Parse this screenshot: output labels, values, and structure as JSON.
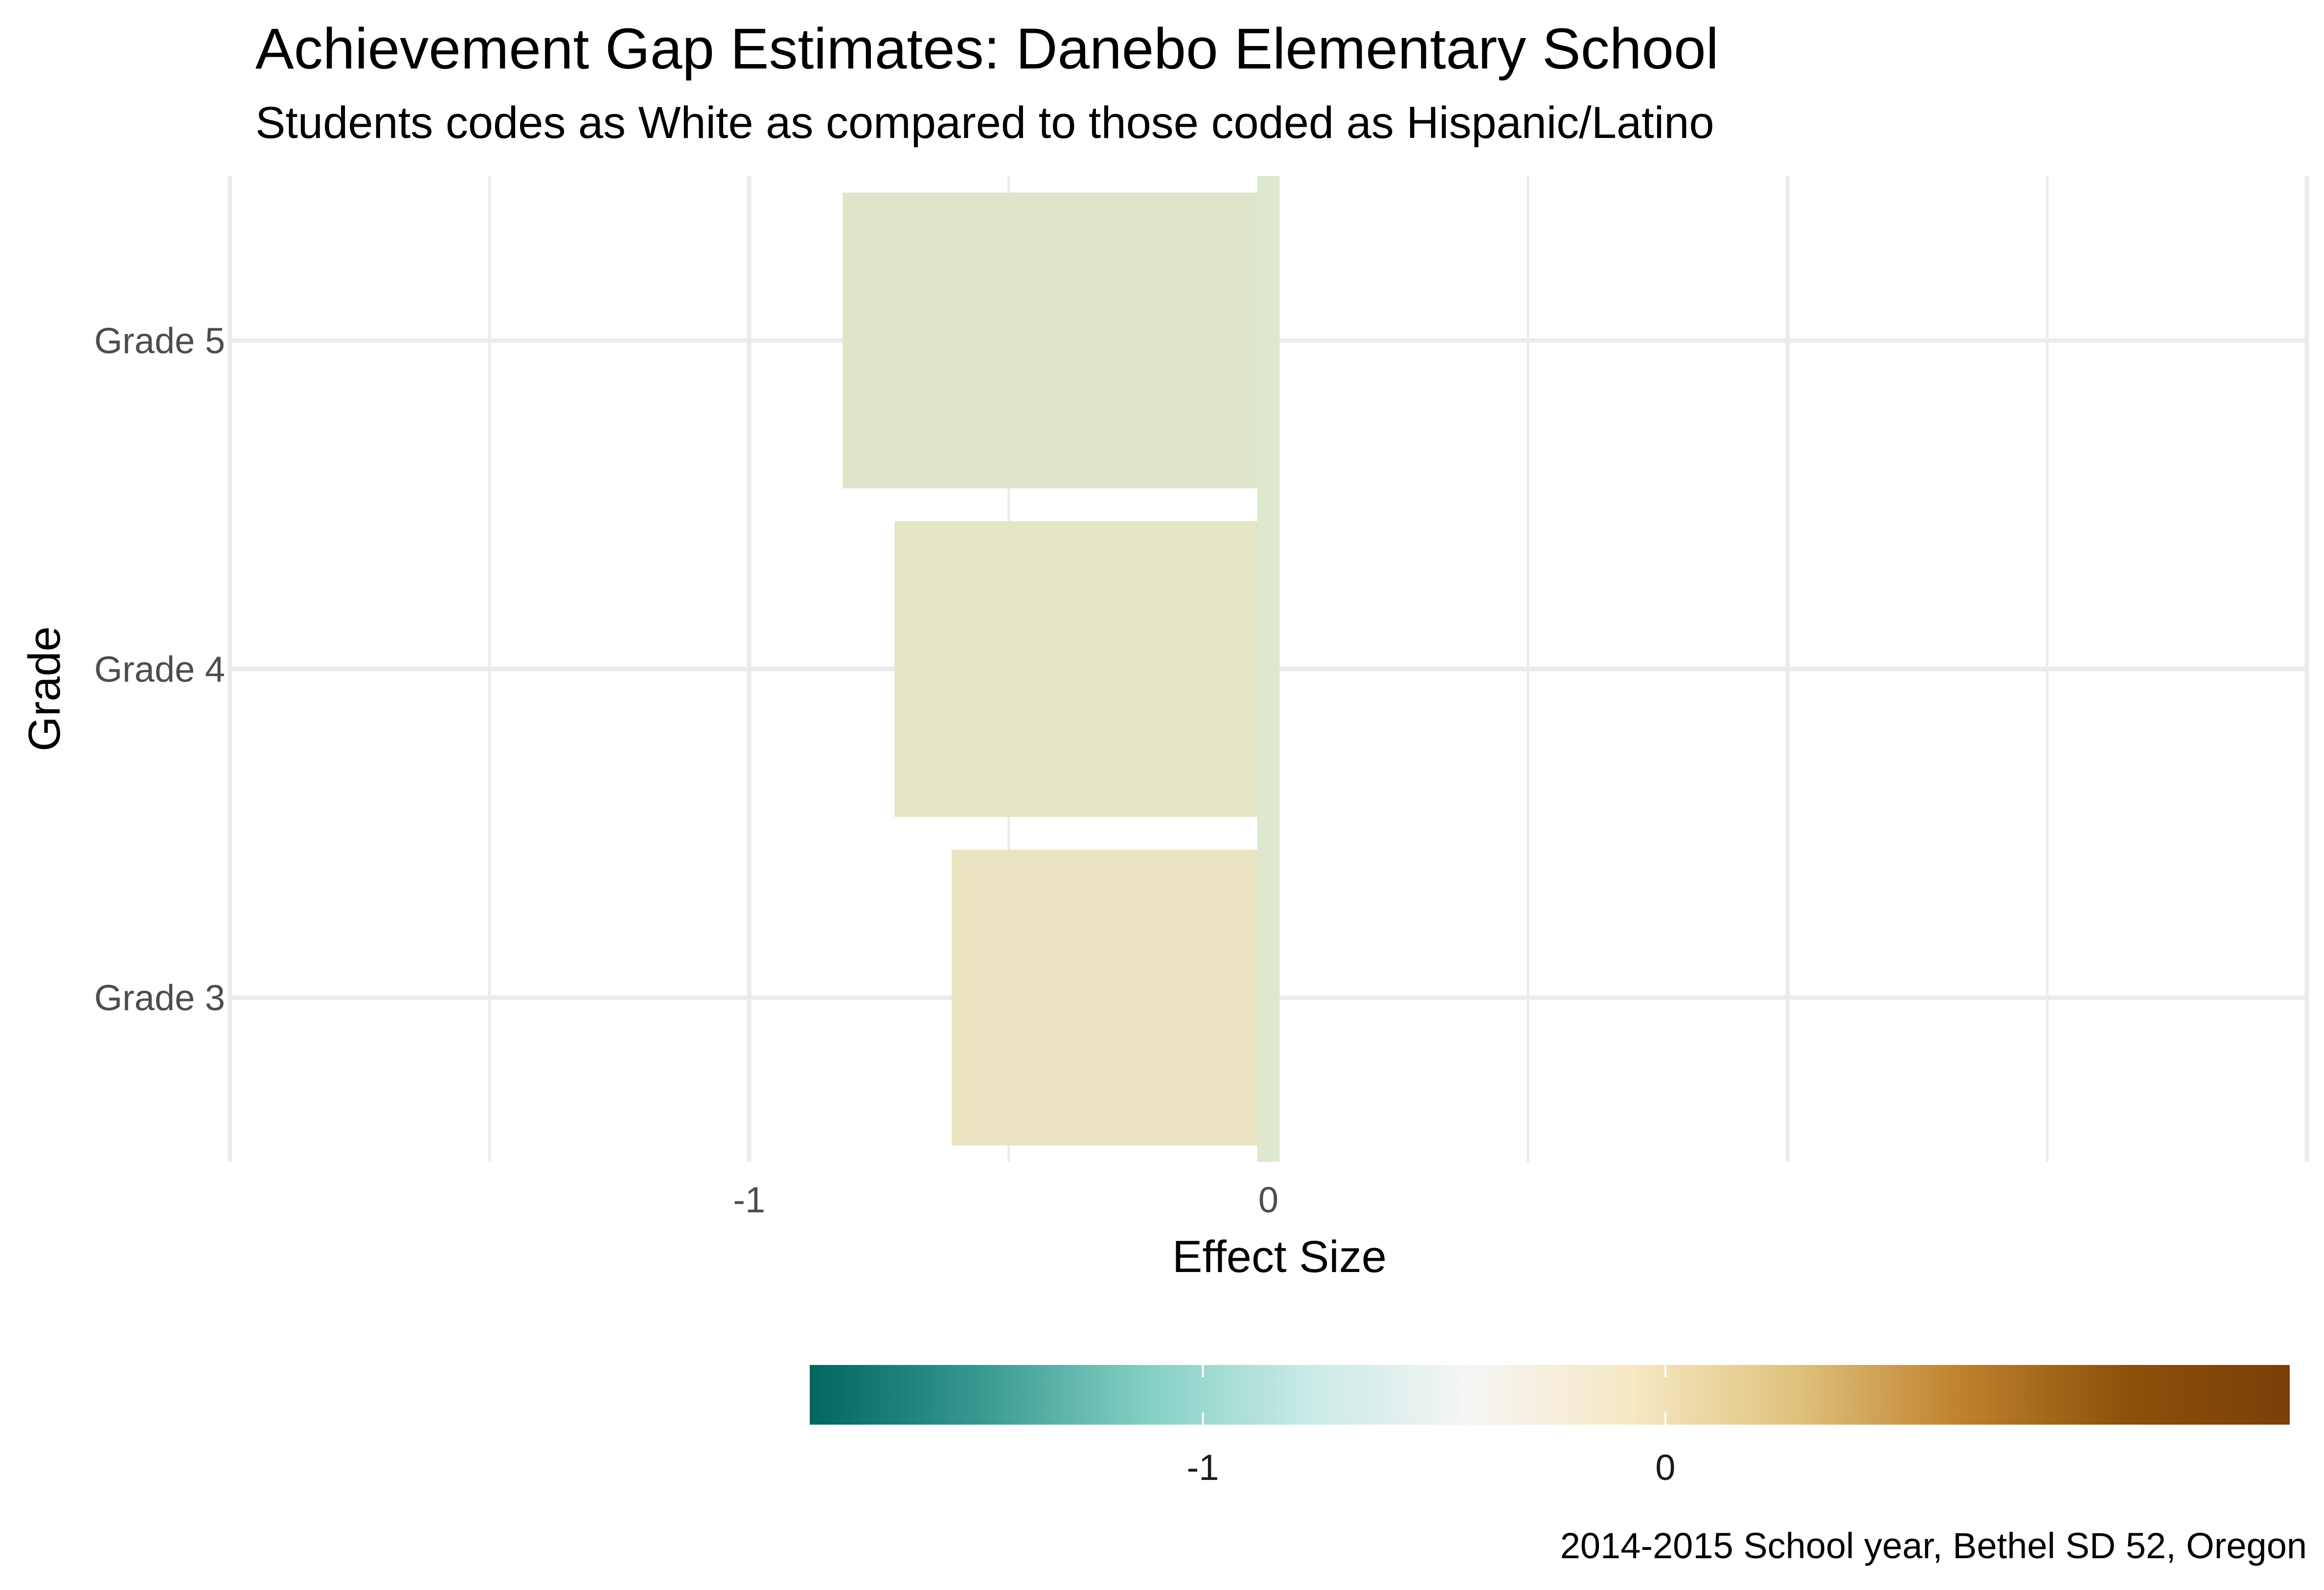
{
  "chart_data": {
    "type": "bar",
    "orientation": "horizontal",
    "title": "Achievement Gap Estimates: Danebo Elementary School",
    "subtitle": "Students codes as White as compared to those coded as Hispanic/Latino",
    "xlabel": "Effect Size",
    "ylabel": "Grade",
    "caption": "2014-2015 School year, Bethel SD 52, Oregon",
    "categories": [
      "Grade 3",
      "Grade 4",
      "Grade 5"
    ],
    "values": [
      -0.61,
      -0.72,
      -0.82
    ],
    "reference_line": {
      "x": 0,
      "color": "#dde8cf"
    },
    "xlim": [
      -2.0,
      2.0
    ],
    "x_ticks": [
      -1,
      0
    ],
    "x_tick_labels": [
      "-1",
      "0"
    ],
    "grid": true,
    "bar_colors": [
      "#e9e3c0",
      "#e3e5c5",
      "#dfe5c8"
    ],
    "legend": {
      "type": "colorbar",
      "position": "bottom",
      "range": [
        -1.85,
        1.35
      ],
      "ticks": [
        -1,
        0
      ],
      "tick_labels": [
        "-1",
        "0"
      ],
      "palette": [
        "#01665e",
        "#35978f",
        "#80cdc1",
        "#c7eae5",
        "#f5f5f5",
        "#f6e8c3",
        "#dfc27d",
        "#bf812d",
        "#8c510a",
        "#7a3f08"
      ]
    }
  }
}
